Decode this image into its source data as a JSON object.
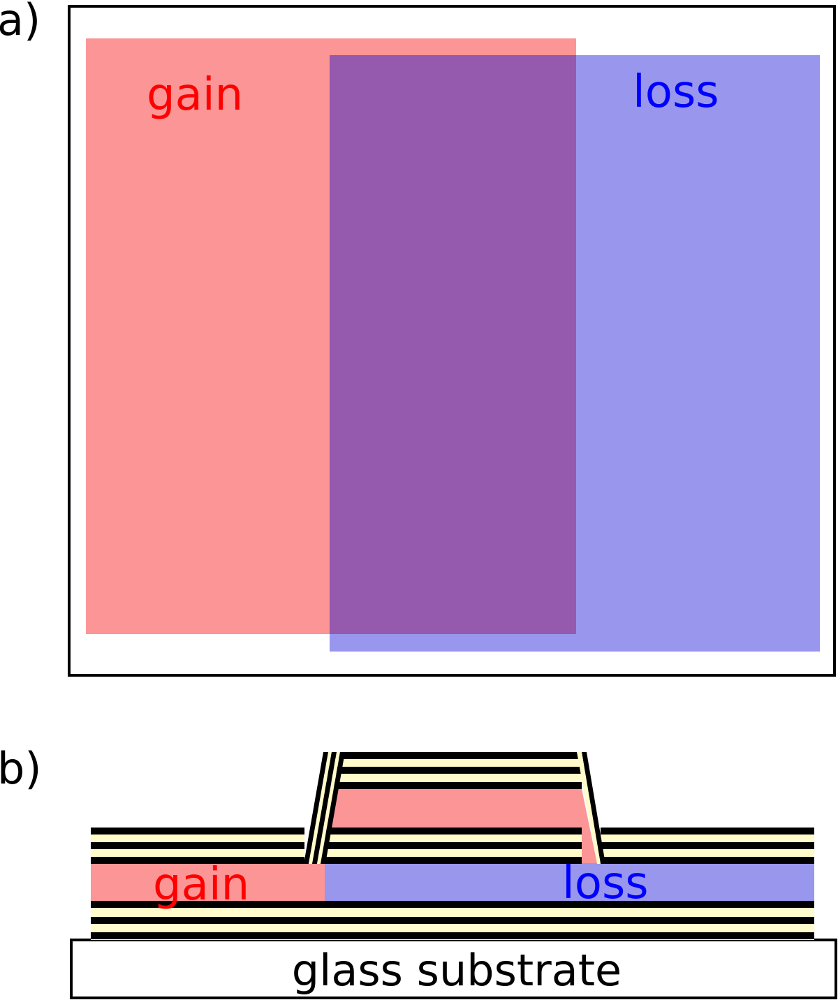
{
  "panel_a": {
    "label": "a)",
    "gain_label": "gain",
    "loss_label": "loss"
  },
  "panel_b": {
    "label": "b)",
    "gain_label": "gain",
    "loss_label": "loss",
    "substrate_label": "glass substrate"
  },
  "colors": {
    "gain": "#fc9596",
    "loss": "#9996ee",
    "overlap": "#9559ad",
    "gain_text": "#ff0000",
    "loss_text": "#0000ff",
    "mirror_dark": "#000000",
    "mirror_light": "#fffbcb",
    "outline": "#000000"
  }
}
